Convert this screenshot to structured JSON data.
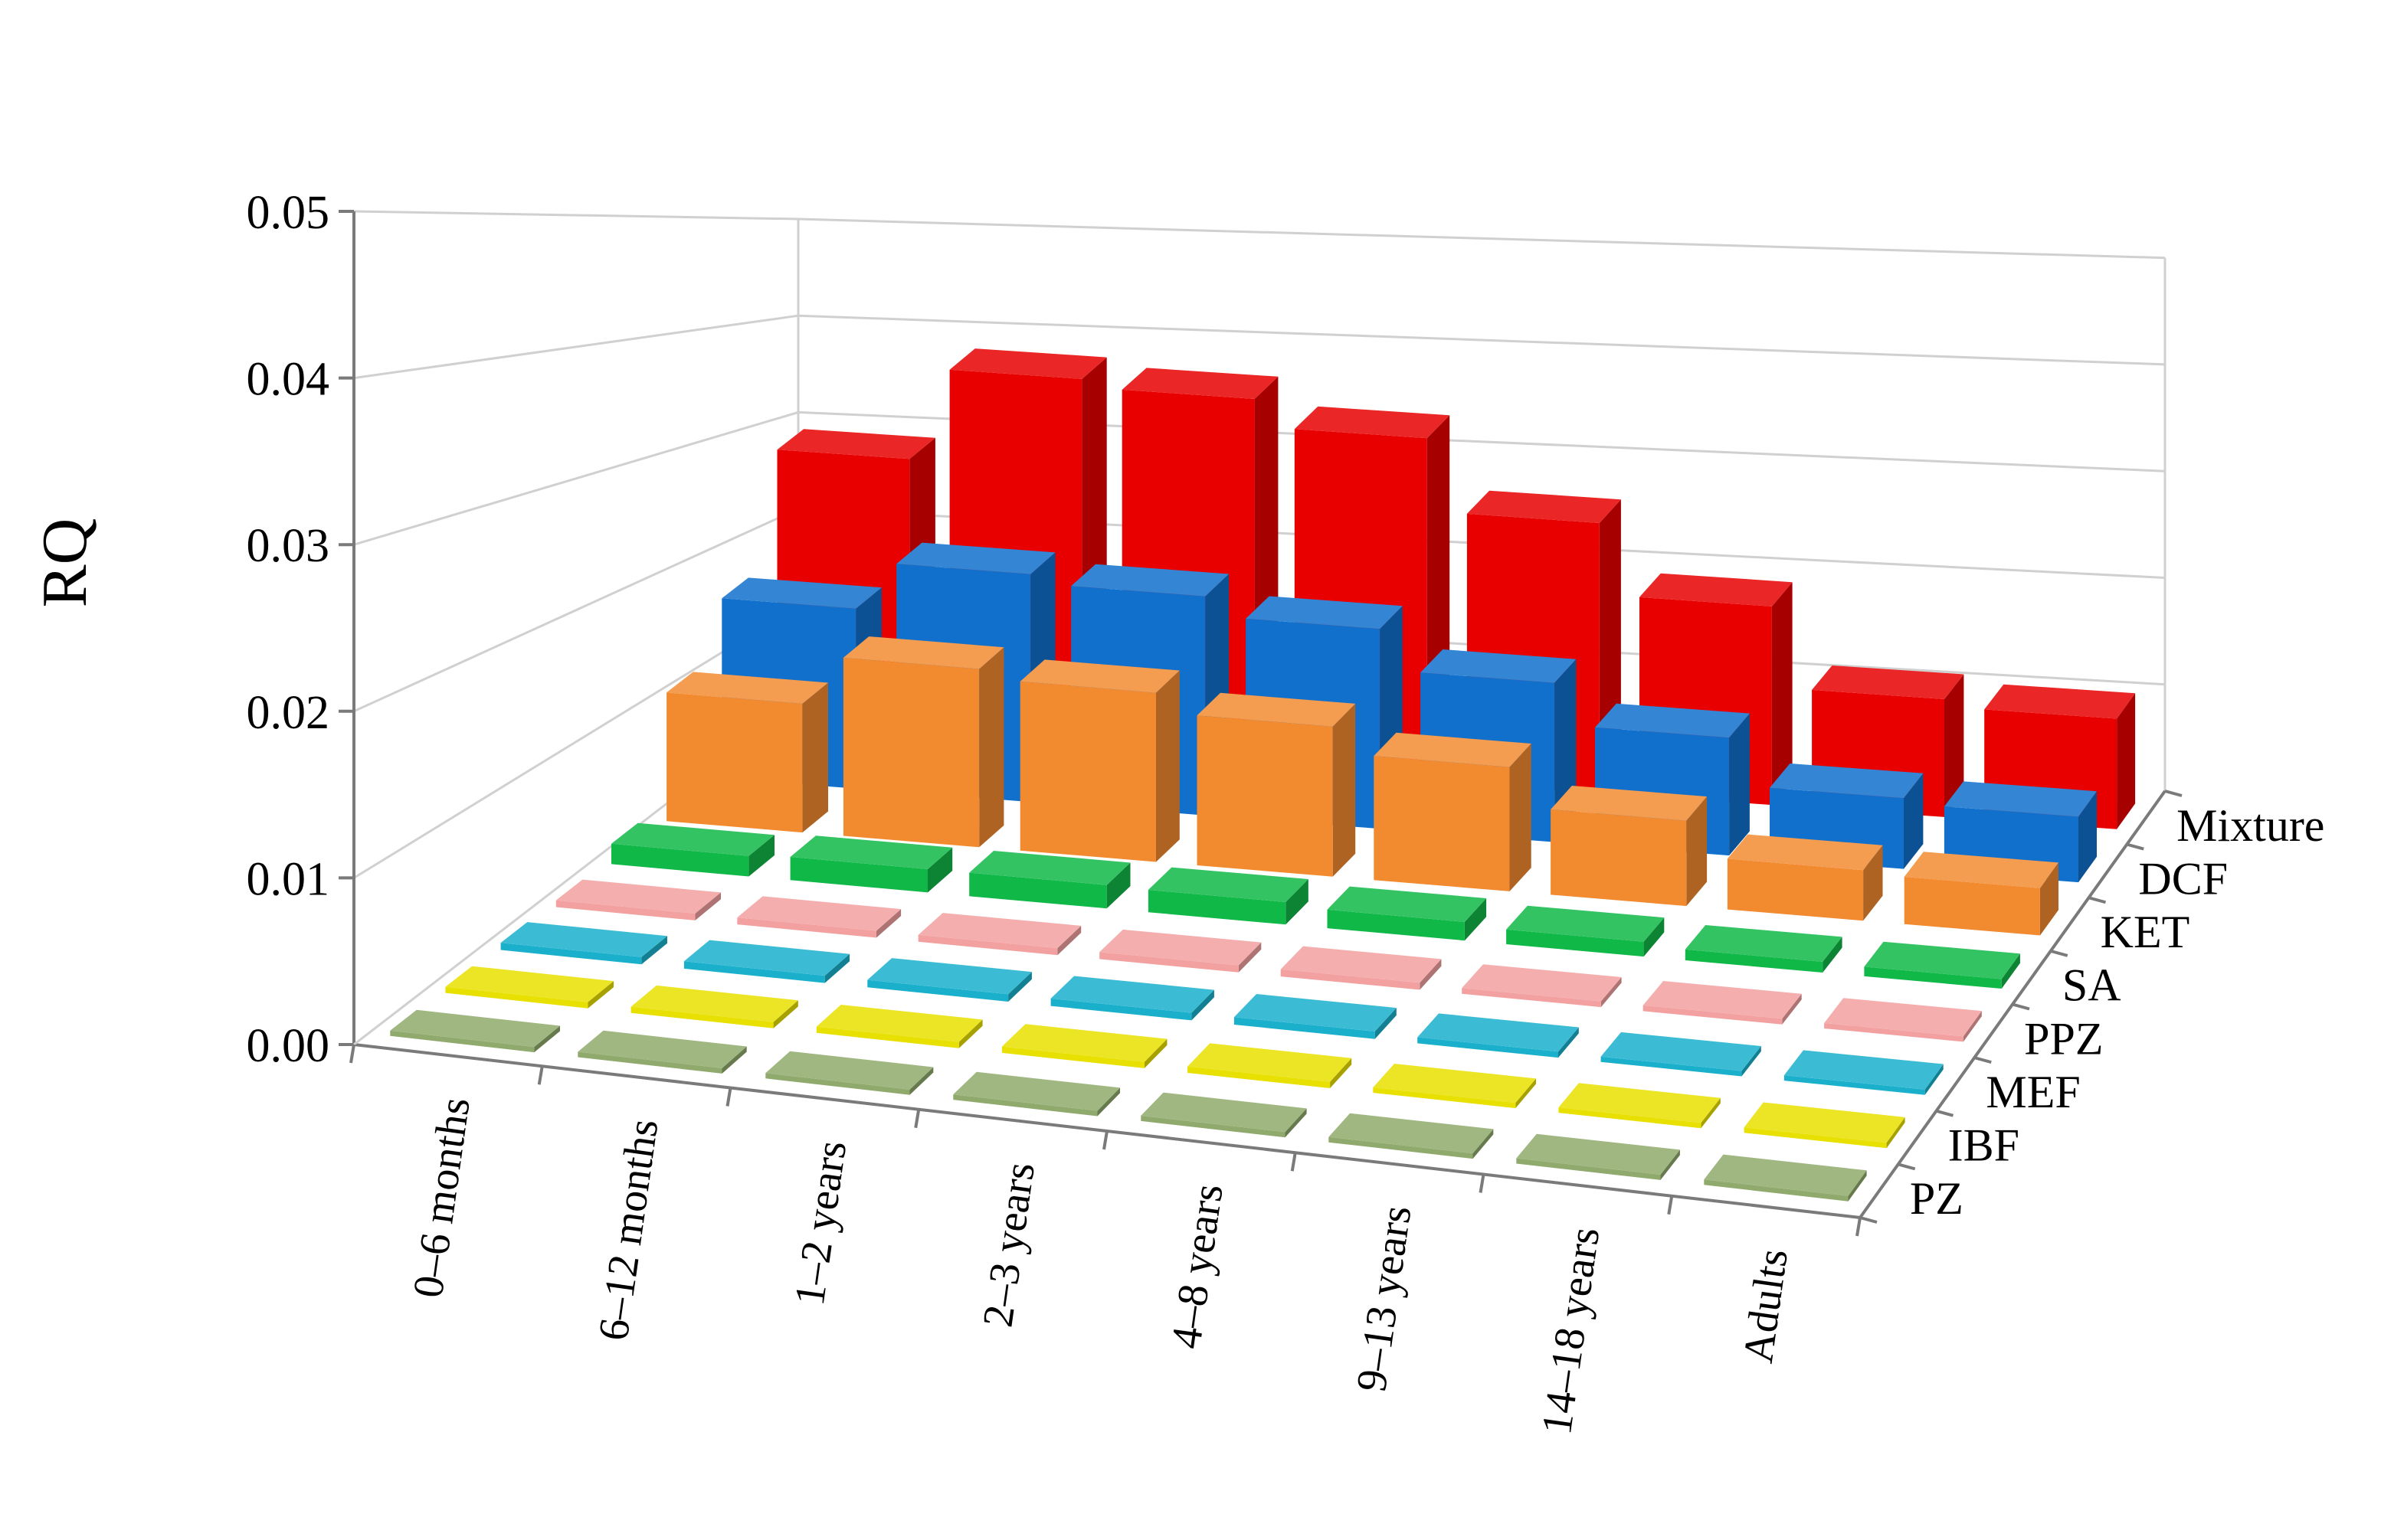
{
  "chart_data": {
    "type": "bar",
    "subtype": "3d-column",
    "title": "",
    "xlabel": "",
    "ylabel": "RQ",
    "ylim": [
      0,
      0.05
    ],
    "yticks": [
      "0.00",
      "0.01",
      "0.02",
      "0.03",
      "0.04",
      "0.05"
    ],
    "grid": true,
    "categories": [
      "0–6 months",
      "6–12 months",
      "1–2 years",
      "2–3 years",
      "4–8 years",
      "9–13 years",
      "14–18 years",
      "Adults"
    ],
    "series": [
      {
        "name": "PZ",
        "color": "#8faa6c",
        "values": [
          0.0002,
          0.0002,
          0.0002,
          0.0002,
          0.0002,
          0.0002,
          0.0002,
          0.0001
        ]
      },
      {
        "name": "IBF",
        "color": "#e8e000",
        "values": [
          0.0004,
          0.0004,
          0.0004,
          0.0004,
          0.0004,
          0.0003,
          0.0003,
          0.0002
        ]
      },
      {
        "name": "MEF",
        "color": "#1ab0cc",
        "values": [
          0.0005,
          0.0005,
          0.0005,
          0.0005,
          0.0005,
          0.0004,
          0.0003,
          0.0003
        ]
      },
      {
        "name": "PPZ",
        "color": "#f2a0a0",
        "values": [
          0.0005,
          0.0005,
          0.0005,
          0.0005,
          0.0005,
          0.0004,
          0.0004,
          0.0003
        ]
      },
      {
        "name": "SA",
        "color": "#10b848",
        "values": [
          0.0016,
          0.0018,
          0.0018,
          0.0017,
          0.0014,
          0.0011,
          0.0008,
          0.0007
        ]
      },
      {
        "name": "KET",
        "color": "#f28a30",
        "values": [
          0.0108,
          0.0148,
          0.0139,
          0.0122,
          0.01,
          0.0068,
          0.004,
          0.0037
        ]
      },
      {
        "name": "DCF",
        "color": "#1070cc",
        "values": [
          0.0163,
          0.0204,
          0.0194,
          0.0175,
          0.0138,
          0.0101,
          0.006,
          0.0055
        ]
      },
      {
        "name": "Mixture",
        "color": "#e80000",
        "values": [
          0.0281,
          0.0367,
          0.0355,
          0.0325,
          0.0253,
          0.0184,
          0.0108,
          0.01
        ]
      }
    ]
  }
}
